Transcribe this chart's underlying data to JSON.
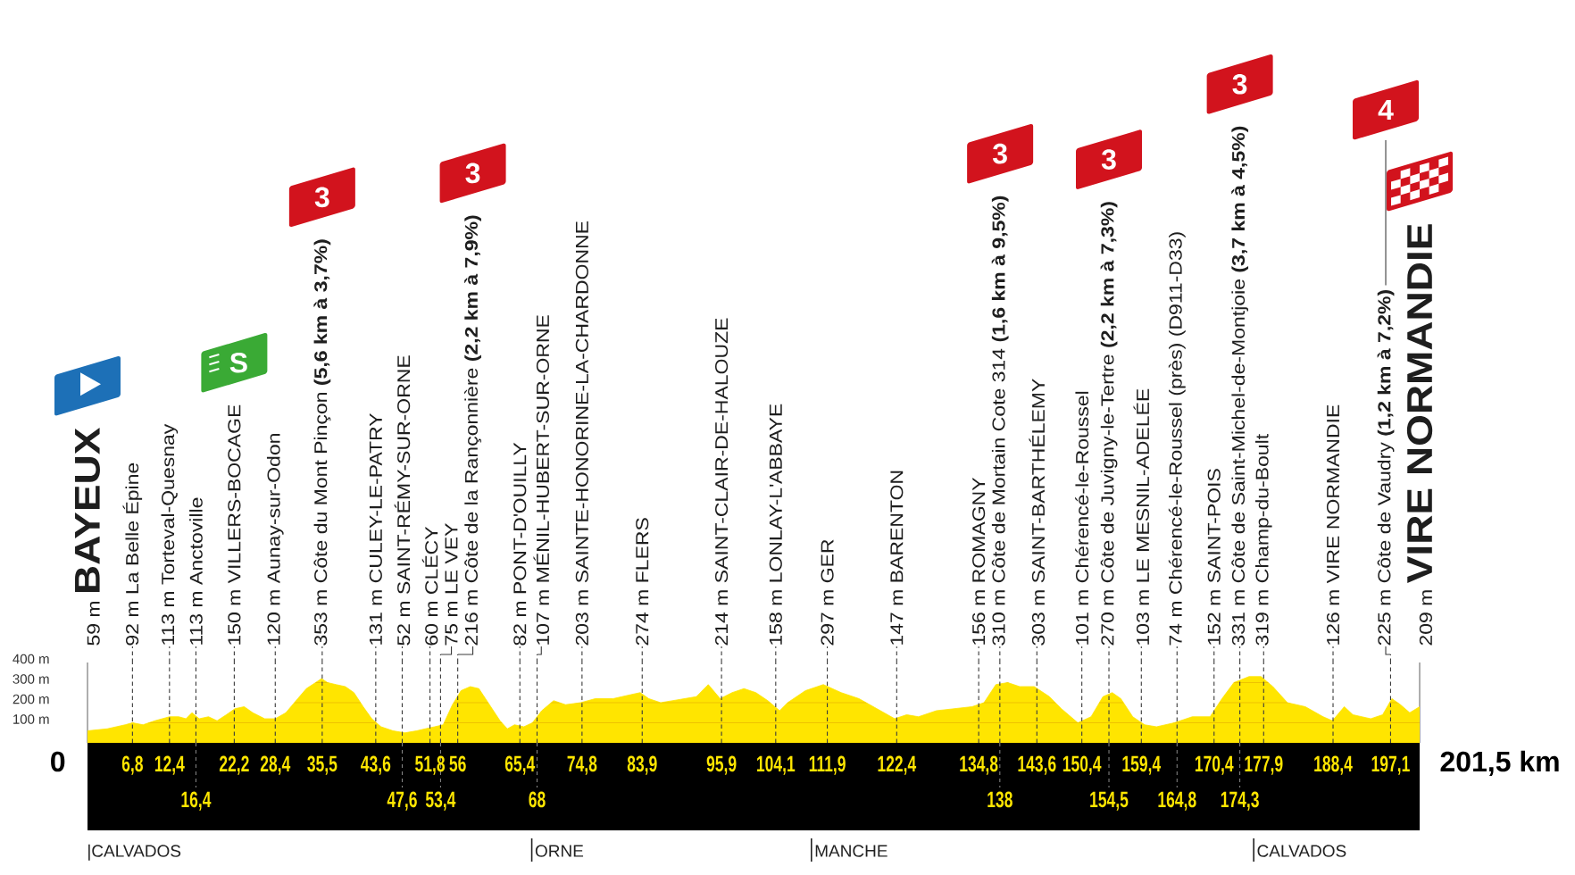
{
  "chart_data": {
    "type": "area",
    "color": "#ffe500",
    "x": [
      0,
      3,
      5.7,
      6.8,
      8.4,
      10.2,
      12.4,
      13.8,
      14.9,
      15.8,
      16.9,
      18.3,
      19.6,
      21,
      22.3,
      23.7,
      25,
      26.8,
      28.4,
      30,
      31.8,
      33.1,
      34.5,
      35.4,
      36.3,
      37.6,
      39,
      40.3,
      41.7,
      43,
      44.4,
      46.2,
      48,
      49.8,
      51.1,
      52.5,
      53.8,
      55.2,
      56.5,
      57.9,
      59.2,
      60.6,
      62.4,
      63.5,
      64.6,
      66,
      67.3,
      68.7,
      70.5,
      72.3,
      74.6,
      76.8,
      79.5,
      82.2,
      83.6,
      84.9,
      86.7,
      88.5,
      90.3,
      92.1,
      93.9,
      95.7,
      97.5,
      99.3,
      101.1,
      102.9,
      104.7,
      105.9,
      108.6,
      111.3,
      114,
      116.7,
      119.4,
      122.1,
      123.9,
      125.7,
      128.4,
      131.1,
      133.8,
      135.6,
      137.4,
      139.2,
      141,
      143.2,
      145.5,
      147.3,
      149.8,
      151.8,
      153.6,
      155,
      156.3,
      158.1,
      159.9,
      161.7,
      164.4,
      167.1,
      169.8,
      171.6,
      173.4,
      175.7,
      177.5,
      179.3,
      181.5,
      184.2,
      186.9,
      188.3,
      190.1,
      191.4,
      194.1,
      195.9,
      197.3,
      198.6,
      200,
      201.5
    ],
    "values": [
      60,
      70,
      90,
      100,
      90,
      110,
      130,
      130,
      120,
      150,
      120,
      130,
      110,
      140,
      170,
      180,
      150,
      120,
      120,
      150,
      220,
      270,
      300,
      320,
      300,
      290,
      280,
      250,
      180,
      120,
      80,
      60,
      50,
      60,
      70,
      80,
      90,
      190,
      260,
      280,
      270,
      200,
      110,
      70,
      90,
      80,
      100,
      160,
      210,
      190,
      200,
      220,
      220,
      240,
      250,
      220,
      200,
      210,
      220,
      230,
      290,
      220,
      250,
      270,
      250,
      210,
      160,
      200,
      260,
      290,
      250,
      220,
      170,
      120,
      140,
      130,
      160,
      170,
      180,
      200,
      290,
      300,
      280,
      280,
      230,
      170,
      100,
      130,
      230,
      250,
      220,
      130,
      90,
      80,
      100,
      130,
      130,
      220,
      300,
      330,
      330,
      280,
      200,
      180,
      130,
      110,
      180,
      140,
      120,
      140,
      220,
      190,
      150,
      180
    ],
    "xlim": [
      0,
      201.5
    ],
    "ylim": [
      0,
      400
    ],
    "x2lim": [
      0,
      201.5
    ],
    "xticks": [
      {
        "value": 0,
        "label": null
      },
      {
        "value": 6.8,
        "label": "6,8"
      },
      {
        "value": 12.4,
        "label": "12,4"
      },
      {
        "value": 22.2,
        "label": "22,2"
      },
      {
        "value": 28.4,
        "label": "28,4"
      },
      {
        "value": 35.5,
        "label": "35,5"
      },
      {
        "value": 43.6,
        "label": "43,6"
      },
      {
        "value": 51.8,
        "label": "51,8"
      },
      56,
      {
        "value": 65.4,
        "label": "65,4"
      },
      {
        "value": 74.8,
        "label": "74,8"
      },
      {
        "value": 83.9,
        "label": "83,9"
      },
      {
        "value": 95.9,
        "label": "95,9"
      },
      {
        "value": 104.1,
        "label": "104,1"
      },
      {
        "value": 111.9,
        "label": "111,9"
      },
      {
        "value": 122.4,
        "label": "122,4"
      },
      {
        "value": 134.8,
        "label": "134,8"
      },
      {
        "value": 143.6,
        "label": "143,6"
      },
      {
        "value": 150.4,
        "label": "150,4"
      },
      {
        "value": 159.4,
        "label": "159,4"
      },
      {
        "value": 170.4,
        "label": "170,4"
      },
      {
        "value": 177.9,
        "label": "177,9"
      },
      {
        "value": 188.4,
        "label": "188,4"
      },
      {
        "value": 197.1,
        "label": "197,1"
      },
      {
        "value": 201.5,
        "label": null
      }
    ],
    "x2ticks": [
      {
        "value": 16.4,
        "label": "16,4"
      },
      {
        "value": 47.6,
        "label": "47,6"
      },
      {
        "value": 53.4,
        "label": "53,4"
      },
      68,
      138,
      {
        "value": 154.5,
        "label": "154,5"
      },
      {
        "value": 164.8,
        "label": "164,8"
      },
      {
        "value": 174.3,
        "label": "174,3"
      }
    ],
    "yticks": [
      {
        "value": 100,
        "label": "100 m"
      },
      {
        "value": 200,
        "label": "200 m"
      },
      {
        "value": 300,
        "label": "300 m"
      },
      {
        "value": 400,
        "label": "400 m"
      }
    ],
    "grid": true,
    "annotations": [
      "59 m **BAYEUX**",
      "92 m La Belle Épine",
      "113 m Torteval-Quesnay",
      "113 m Anctoville",
      "150 m VILLERS-BOCAGE",
      "120 m Aunay-sur-Odon",
      "353 m Côte du Mont Pinçon **(5,6 km à 3,7%)**",
      "131 m CULEY-LE-PATRY",
      "52 m SAINT-RÉMY-SUR-ORNE",
      "60 m CLÉCY",
      "75 m LE VEY",
      "216 m Côte de la Rançonnière **(2,2 km à 7,9%)**",
      "82 m PONT-D'OUILLY",
      "107 m MÉNIL-HUBERT-SUR-ORNE",
      "203 m SAINTE-HONORINE-LA-CHARDONNE",
      "274 m FLERS",
      "214 m SAINT-CLAIR-DE-HALOUZE",
      "158 m LONLAY-L'ABBAYE",
      "297 m GER",
      "147 m BARENTON",
      "156 m ROMAGNY",
      "310 m Côte de Mortain Cote 314 **(1,6 km à 9,5%)**",
      "303 m SAINT-BARTHÉLEMY",
      "101 m Chérencé-le-Roussel",
      "270 m Côte de Juvigny-le-Tertre **(2,2 km à 7,3%)**",
      "103 m LE MESNIL-ADELÉE",
      "74 m Chérencé-le-Roussel (près) (D911-D33)",
      "152 m SAINT-POIS",
      "331 m Côte de Saint-Michel-de-Montjoie **(3,7 km à 4,5%)**",
      "319 m Champ-du-Boult",
      "126 m VIRE NORMANDIE",
      "225 m Côte de Vaudry **(1,2 km à 7,2%)**",
      "209 m **VIRE NORMANDIE**",
      "0",
      "201,5 km",
      "|CALVADOS",
      "S",
      "3",
      "3",
      "3",
      "3",
      "3",
      "4"
    ],
    "ref_lines": [
      {
        "axis": "x",
        "value": 67.2,
        "label": "ORNE"
      },
      {
        "axis": "x",
        "value": 109.5,
        "label": "MANCHE"
      },
      {
        "axis": "x",
        "value": 176.4,
        "label": "CALVADOS"
      }
    ]
  }
}
